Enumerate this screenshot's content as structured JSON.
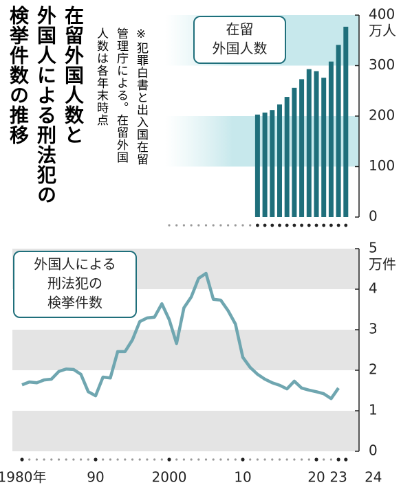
{
  "title": [
    "在留外国人数と",
    "外国人による刑法犯の",
    "検挙件数の推移"
  ],
  "note": [
    "※犯罪白書と出入国在留",
    "管理庁による。在留外国",
    "人数は各年末時点"
  ],
  "chart_data": [
    {
      "type": "bar",
      "label": [
        "在留",
        "外国人数"
      ],
      "unit": "万人",
      "color": "#1f6f7b",
      "x": [
        2012,
        2013,
        2014,
        2015,
        2016,
        2017,
        2018,
        2019,
        2020,
        2021,
        2022,
        2023,
        2024
      ],
      "values": [
        203,
        207,
        212,
        223,
        238,
        256,
        273,
        293,
        289,
        276,
        308,
        341,
        377
      ],
      "xlim": [
        2000,
        2024
      ],
      "ylim": [
        0,
        400
      ],
      "yticks": [
        0,
        100,
        200,
        300,
        400
      ]
    },
    {
      "type": "line",
      "label": [
        "外国人による",
        "刑法犯の",
        "検挙件数"
      ],
      "unit": "万件",
      "color": "#6fa6b0",
      "x": [
        1980,
        1981,
        1982,
        1983,
        1984,
        1985,
        1986,
        1987,
        1988,
        1989,
        1990,
        1991,
        1992,
        1993,
        1994,
        1995,
        1996,
        1997,
        1998,
        1999,
        2000,
        2001,
        2002,
        2003,
        2004,
        2005,
        2006,
        2007,
        2008,
        2009,
        2010,
        2011,
        2012,
        2013,
        2014,
        2015,
        2016,
        2017,
        2018,
        2019,
        2020,
        2021,
        2022,
        2023
      ],
      "values": [
        1.64,
        1.71,
        1.69,
        1.76,
        1.78,
        1.97,
        2.03,
        2.02,
        1.9,
        1.47,
        1.37,
        1.83,
        1.81,
        2.46,
        2.46,
        2.75,
        3.2,
        3.29,
        3.31,
        3.64,
        3.25,
        2.66,
        3.54,
        3.81,
        4.27,
        4.39,
        3.75,
        3.73,
        3.47,
        3.14,
        2.32,
        2.07,
        1.9,
        1.78,
        1.69,
        1.63,
        1.54,
        1.73,
        1.56,
        1.51,
        1.47,
        1.42,
        1.3,
        1.56
      ],
      "xlim": [
        1980,
        2024
      ],
      "ylim": [
        0,
        5
      ],
      "yticks": [
        0,
        1,
        2,
        3,
        4,
        5
      ],
      "xticks": [
        {
          "value": 1980,
          "label": "1980年"
        },
        {
          "value": 1990,
          "label": "90"
        },
        2000,
        {
          "value": 2010,
          "label": "10"
        },
        {
          "value": 2020,
          "label": "20"
        },
        {
          "value": 2023,
          "label": "23"
        },
        {
          "value": 2024,
          "label": "24"
        }
      ]
    }
  ]
}
